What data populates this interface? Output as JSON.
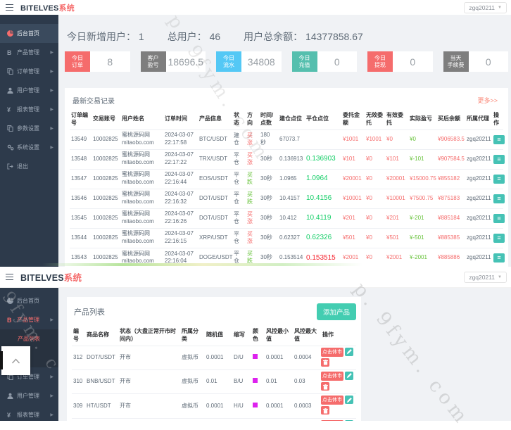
{
  "brand": {
    "name_en": "BITELVES",
    "name_cn": "系统"
  },
  "user": {
    "name": "zgq20211"
  },
  "watermarks": {
    "top": "p. 9fym. com",
    "right": "p. 9fym. com",
    "left": ". 9fym. c"
  },
  "top_section": {
    "sidebar": [
      {
        "key": "dashboard",
        "label": "后台首页",
        "icon": "dashboard-icon",
        "active": true,
        "arrow": false
      },
      {
        "key": "products",
        "label": "产品管理",
        "icon": "product-icon",
        "arrow": true
      },
      {
        "key": "orders",
        "label": "订单管理",
        "icon": "order-icon",
        "arrow": true
      },
      {
        "key": "users",
        "label": "用户管理",
        "icon": "user-icon",
        "arrow": true
      },
      {
        "key": "reports",
        "label": "报表管理",
        "icon": "report-icon",
        "arrow": true
      },
      {
        "key": "params",
        "label": "参数设置",
        "icon": "params-icon",
        "arrow": true
      },
      {
        "key": "system",
        "label": "系统设置",
        "icon": "settings-icon",
        "arrow": true
      },
      {
        "key": "logout",
        "label": "退出",
        "icon": "logout-icon",
        "arrow": false
      }
    ],
    "summary": [
      {
        "label": "今日新增用户：",
        "value": "1"
      },
      {
        "label": "总用户：",
        "value": "46"
      },
      {
        "label": "用户总余额：",
        "value": "14377858.67"
      }
    ],
    "stat_cards": [
      {
        "label": "今日订单",
        "value": "8",
        "color": "#f56c6c"
      },
      {
        "label": "客户盈亏",
        "value": "18696.5",
        "color": "#7e7e7e"
      },
      {
        "label": "今日流水",
        "value": "34808",
        "color": "#54c8f5"
      },
      {
        "label": "今日充值",
        "value": "0",
        "color": "#55bfae"
      },
      {
        "label": "今日提现",
        "value": "0",
        "color": "#f56c6c"
      },
      {
        "label": "当天手续费",
        "value": "0",
        "color": "#7e7e7e"
      }
    ],
    "table": {
      "title": "最新交易记录",
      "more_link": "更多>>",
      "headers": [
        "订单编号",
        "交易账号",
        "用户姓名",
        "订单时间",
        "产品信息",
        "状态",
        "方向",
        "时间/点数",
        "建仓点位",
        "平仓点位",
        "委托金额",
        "无效委托",
        "有效委托",
        "实际盈亏",
        "买后余额",
        "所属代理",
        "操作"
      ],
      "rows": [
        {
          "id": "13549",
          "account": "10002825",
          "name": "蜜桃源码网",
          "domain": "mitaobo.com",
          "date": "2024-03-07",
          "time": "22:17:58",
          "product": "BTC/USDT",
          "status": "建仓",
          "dir": "买涨",
          "dir_color": "red",
          "duration": "180秒",
          "duration_wrap": true,
          "open": "67073.7",
          "close": "",
          "close_color": "green",
          "amount": "¥1001",
          "invalid": "¥1001",
          "valid": "¥0",
          "pnl": "¥0",
          "pnl_color": "green",
          "balance": "¥906583.5",
          "agent": "zgq20211"
        },
        {
          "id": "13548",
          "account": "10002825",
          "name": "蜜桃源码网",
          "domain": "mitaobo.com",
          "date": "2024-03-07",
          "time": "22:17:22",
          "product": "TRX/USDT",
          "status": "平仓",
          "dir": "买涨",
          "dir_color": "red",
          "duration": "30秒",
          "open": "0.136913",
          "close": "0.136903",
          "close_color": "green",
          "amount": "¥101",
          "invalid": "¥0",
          "valid": "¥101",
          "pnl": "¥-101",
          "pnl_color": "green",
          "balance": "¥907584.5",
          "agent": "zgq20211"
        },
        {
          "id": "13547",
          "account": "10002825",
          "name": "蜜桃源码网",
          "domain": "mitaobo.com",
          "date": "2024-03-07",
          "time": "22:16:44",
          "product": "EOS/USDT",
          "status": "平仓",
          "dir": "买跌",
          "dir_color": "green",
          "duration": "30秒",
          "open": "1.0965",
          "close": "1.0964",
          "close_color": "green",
          "amount": "¥20001",
          "invalid": "¥0",
          "valid": "¥20001",
          "pnl": "¥15000.75",
          "pnl_color": "red",
          "balance": "¥855182",
          "agent": "zgq20211"
        },
        {
          "id": "13546",
          "account": "10002825",
          "name": "蜜桃源码网",
          "domain": "mitaobo.com",
          "date": "2024-03-07",
          "time": "22:16:32",
          "product": "DOT/USDT",
          "status": "平仓",
          "dir": "买跌",
          "dir_color": "green",
          "duration": "30秒",
          "open": "10.4157",
          "close": "10.4156",
          "close_color": "green",
          "amount": "¥10001",
          "invalid": "¥0",
          "valid": "¥10001",
          "pnl": "¥7500.75",
          "pnl_color": "red",
          "balance": "¥875183",
          "agent": "zgq20211"
        },
        {
          "id": "13545",
          "account": "10002825",
          "name": "蜜桃源码网",
          "domain": "mitaobo.com",
          "date": "2024-03-07",
          "time": "22:16:26",
          "product": "DOT/USDT",
          "status": "平仓",
          "dir": "买涨",
          "dir_color": "red",
          "duration": "30秒",
          "open": "10.412",
          "close": "10.4119",
          "close_color": "green",
          "amount": "¥201",
          "invalid": "¥0",
          "valid": "¥201",
          "pnl": "¥-201",
          "pnl_color": "green",
          "balance": "¥885184",
          "agent": "zgq20211"
        },
        {
          "id": "13544",
          "account": "10002825",
          "name": "蜜桃源码网",
          "domain": "mitaobo.com",
          "date": "2024-03-07",
          "time": "22:16:15",
          "product": "XRP/USDT",
          "status": "平仓",
          "dir": "买涨",
          "dir_color": "red",
          "duration": "30秒",
          "open": "0.62327",
          "close": "0.62326",
          "close_color": "green",
          "amount": "¥501",
          "invalid": "¥0",
          "valid": "¥501",
          "pnl": "¥-501",
          "pnl_color": "green",
          "balance": "¥885385",
          "agent": "zgq20211"
        },
        {
          "id": "13543",
          "account": "10002825",
          "name": "蜜桃源码网",
          "domain": "mitaobo.com",
          "date": "2024-03-07",
          "time": "22:16:04",
          "product": "DOGE/USDT",
          "status": "平仓",
          "dir": "买跌",
          "dir_color": "green",
          "duration": "30秒",
          "open": "0.153514",
          "close": "0.153515",
          "close_color": "red",
          "amount": "¥2001",
          "invalid": "¥0",
          "valid": "¥2001",
          "pnl": "¥-2001",
          "pnl_color": "green",
          "balance": "¥885886",
          "agent": "zgq20211"
        }
      ]
    }
  },
  "bottom_section": {
    "sidebar": [
      {
        "key": "dashboard",
        "label": "后台首页",
        "icon": "dashboard-icon",
        "arrow": false
      },
      {
        "key": "products",
        "label": "产品管理",
        "icon": "product-icon",
        "arrow": true,
        "red": true
      },
      {
        "key": "product-list",
        "label": "产品列表",
        "sub": true,
        "red": true
      },
      {
        "key": "hidden-sub",
        "label": "",
        "sub": true,
        "spacer": true
      },
      {
        "key": "orders",
        "label": "订单管理",
        "icon": "order-icon",
        "arrow": true
      },
      {
        "key": "users",
        "label": "用户管理",
        "icon": "user-icon",
        "arrow": true
      },
      {
        "key": "reports",
        "label": "报表管理",
        "icon": "report-icon",
        "arrow": true
      }
    ],
    "panel": {
      "title": "产品列表",
      "add_button": "添加产品",
      "headers": [
        "编号",
        "商品名称",
        "状态（大盘正常开市时间内）",
        "所属分类",
        "随机值",
        "缩写",
        "颜色",
        "风控最小值",
        "风控最大值",
        "操作"
      ],
      "suspend_button": "点击休市",
      "color_swatch": "#dd22ee",
      "rows": [
        {
          "no": "312",
          "name": "DOT/USDT",
          "status": "开市",
          "category": "虚拟币",
          "random": "0.0001",
          "abbr": "D/U",
          "risk_min": "0.0001",
          "risk_max": "0.0004"
        },
        {
          "no": "310",
          "name": "BNB/USDT",
          "status": "开市",
          "category": "虚拟币",
          "random": "0.01",
          "abbr": "B/U",
          "risk_min": "0.01",
          "risk_max": "0.03"
        },
        {
          "no": "309",
          "name": "HT/USDT",
          "status": "开市",
          "category": "虚拟币",
          "random": "0.0001",
          "abbr": "H/U",
          "risk_min": "0.0001",
          "risk_max": "0.0003"
        },
        {
          "no": "",
          "name": "",
          "status": "",
          "category": "",
          "random": "",
          "abbr": "",
          "risk_min": "",
          "risk_max": "",
          "partial": true
        }
      ]
    }
  }
}
